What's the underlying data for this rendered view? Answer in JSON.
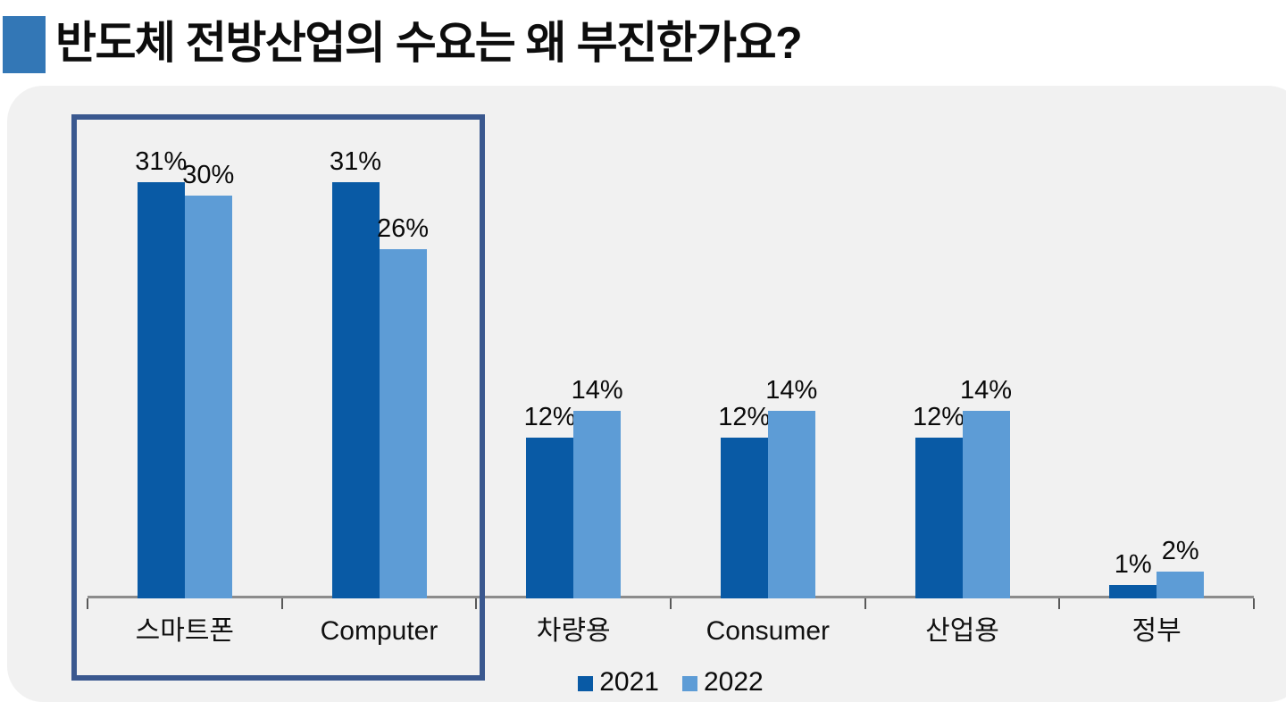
{
  "title": {
    "text": "반도체 전방산업의 수요는 왜 부진한가요?",
    "marker_color": "#3377b6"
  },
  "chart_data": {
    "type": "bar",
    "title": "",
    "categories": [
      "스마트폰",
      "Computer",
      "차량용",
      "Consumer",
      "산업용",
      "정부"
    ],
    "series": [
      {
        "name": "2021",
        "color": "#095aa5",
        "values": [
          31,
          31,
          12,
          12,
          12,
          1
        ]
      },
      {
        "name": "2022",
        "color": "#5d9cd6",
        "values": [
          30,
          26,
          14,
          14,
          14,
          2
        ]
      }
    ],
    "value_format": "{v}%",
    "data_labels": true,
    "xlabel": "",
    "ylabel": "",
    "ylim": [
      0,
      33
    ],
    "grid": false,
    "legend_position": "bottom-center",
    "plot_background": "#f1f1f1",
    "axis": {
      "line_color": "#8c8c8c",
      "tick_color": "#595959"
    },
    "highlight_box": {
      "categories": [
        "스마트폰",
        "Computer"
      ],
      "border_color": "#3a588f"
    }
  }
}
